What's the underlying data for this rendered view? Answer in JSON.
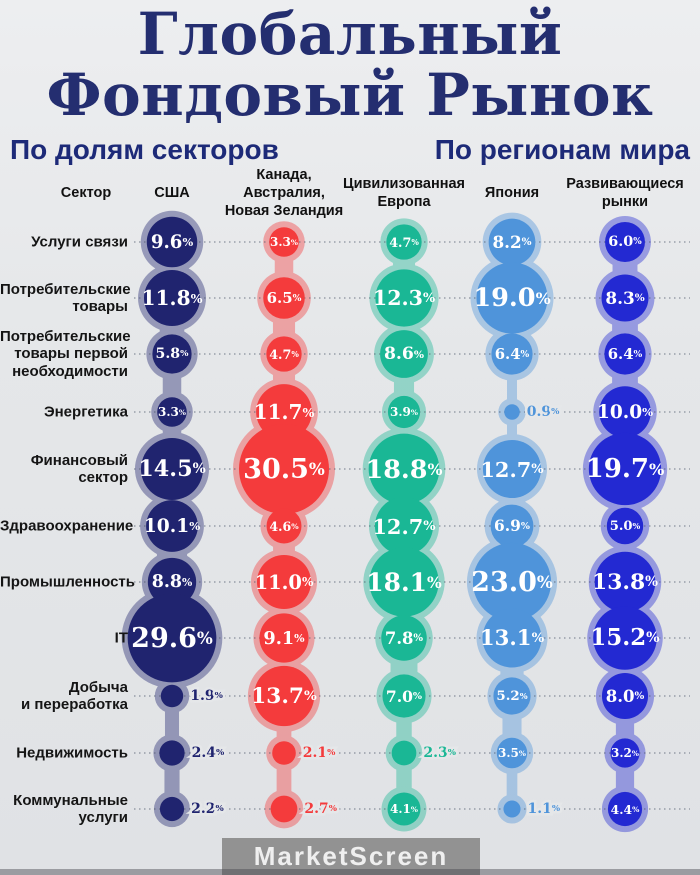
{
  "title_line1": "Глобальный",
  "title_line2": "Фондовый Рынок",
  "subtitle_left": "По долям секторов",
  "subtitle_right": "По регионам мира",
  "corner_header": "Сектор",
  "watermark": "MarketScreen",
  "colors": {
    "background": "#e5e7e9",
    "title": "#242e70",
    "subtitle": "#1d2a78",
    "header_text": "#111111",
    "row_label": "#151515",
    "dotted_line": "#4a5568",
    "bubble_value_text": "#ffffff",
    "watermark_bg": "#8a8a8a",
    "watermark_text": "#efefef"
  },
  "chart_data": {
    "type": "bubble",
    "title": "Глобальный Фондовый Рынок",
    "subtitle_left": "По долям секторов",
    "subtitle_right": "По регионам мира",
    "value_suffix": "%",
    "value_decimals": 1,
    "outside_label_below": 3.0,
    "legend_position": "column-headers",
    "grid": "dotted-row-leaders",
    "categories": [
      "Услуги связи",
      "Потребительские товары",
      "Потребительские товары первой необходимости",
      "Энергетика",
      "Финансовый сектор",
      "Здравоохранение",
      "Промышленность",
      "IT",
      "Добыча и переработка",
      "Недвижимость",
      "Коммунальные услуги"
    ],
    "category_lines": [
      [
        "Услуги связи"
      ],
      [
        "Потребительские",
        "товары"
      ],
      [
        "Потребительские",
        "товары первой",
        "необходимости"
      ],
      [
        "Энергетика"
      ],
      [
        "Финансовый",
        "сектор"
      ],
      [
        "Здравоохранение"
      ],
      [
        "Промышленность"
      ],
      [
        "IT"
      ],
      [
        "Добыча",
        "и переработка"
      ],
      [
        "Недвижимость"
      ],
      [
        "Коммунальные",
        "услуги"
      ]
    ],
    "series": [
      {
        "name": "США",
        "name_lines": [
          "США"
        ],
        "color": "#20246f",
        "values": [
          9.6,
          11.8,
          5.8,
          3.3,
          14.5,
          10.1,
          8.8,
          29.6,
          1.9,
          2.4,
          2.2
        ]
      },
      {
        "name": "Канада, Австралия, Новая Зеландия",
        "name_lines": [
          "Канада,",
          "Австралия,",
          "Новая Зеландия"
        ],
        "color": "#f43b3c",
        "values": [
          3.3,
          6.5,
          4.7,
          11.7,
          30.5,
          4.6,
          11.0,
          9.1,
          13.7,
          2.1,
          2.7
        ]
      },
      {
        "name": "Цивилизованная Европа",
        "name_lines": [
          "Цивилизованная",
          "Европа"
        ],
        "color": "#1ab795",
        "values": [
          4.7,
          12.3,
          8.6,
          3.9,
          18.8,
          12.7,
          18.1,
          7.8,
          7.0,
          2.3,
          4.1
        ]
      },
      {
        "name": "Япония",
        "name_lines": [
          "Япония"
        ],
        "color": "#4f94da",
        "values": [
          8.2,
          19.0,
          6.4,
          0.9,
          12.7,
          6.9,
          23.0,
          13.1,
          5.2,
          3.5,
          1.1
        ]
      },
      {
        "name": "Развивающиеся рынки",
        "name_lines": [
          "Развивающиеся",
          "рынки"
        ],
        "color": "#2329d2",
        "values": [
          6.0,
          8.3,
          6.4,
          10.0,
          19.7,
          5.0,
          13.8,
          15.2,
          8.0,
          3.2,
          4.4
        ]
      }
    ]
  }
}
